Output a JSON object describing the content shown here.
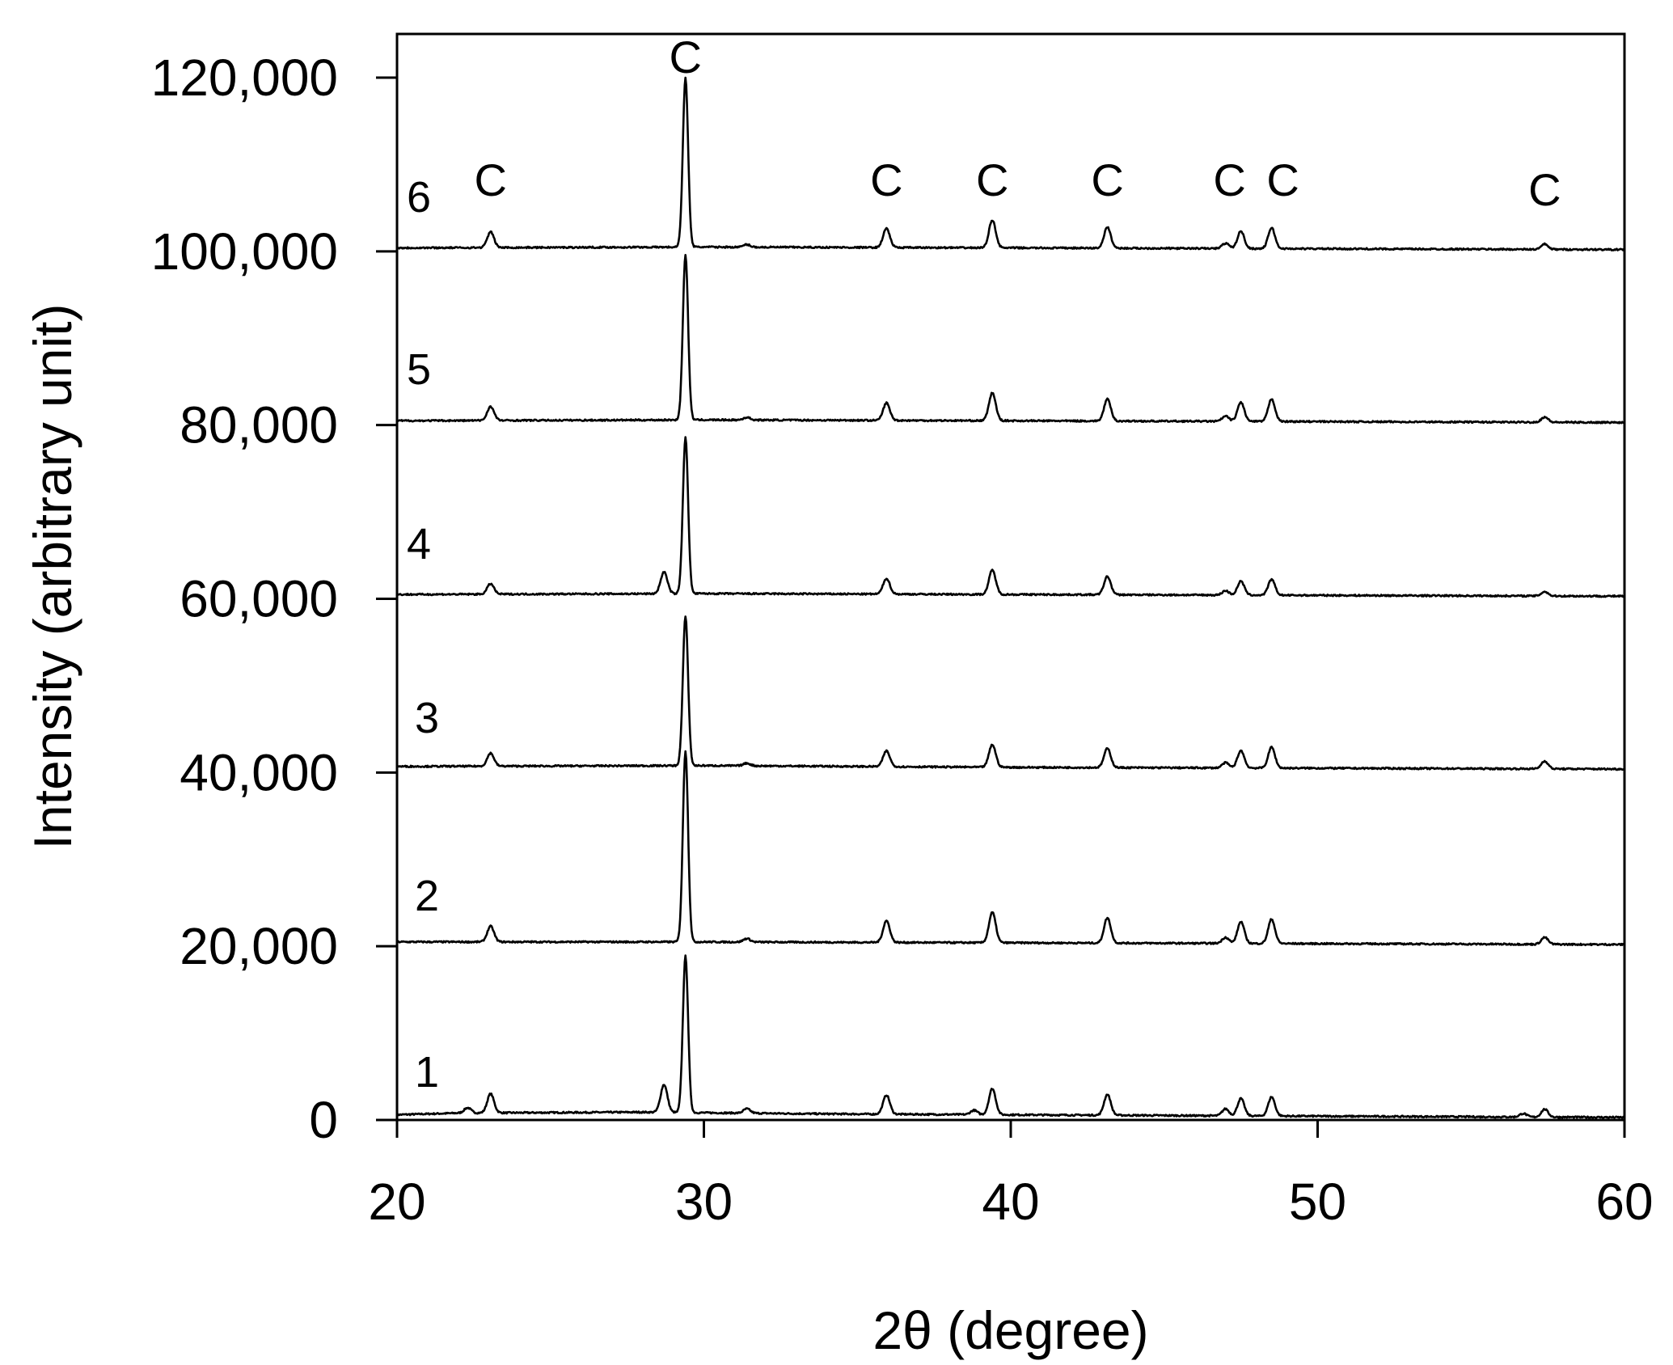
{
  "chart_data": {
    "type": "line",
    "xlabel": "2θ (degree)",
    "ylabel": "Intensity (arbitrary unit)",
    "xlim": [
      20,
      60
    ],
    "ylim": [
      0,
      125000
    ],
    "xticks": [
      20,
      30,
      40,
      50,
      60
    ],
    "xtick_labels": [
      "20",
      "30",
      "40",
      "50",
      "60"
    ],
    "yticks": [
      0,
      20000,
      40000,
      60000,
      80000,
      100000,
      120000
    ],
    "ytick_labels": [
      "0",
      "20,000",
      "40,000",
      "60,000",
      "80,000",
      "100,000",
      "120,000"
    ],
    "grid": false,
    "legend": "none",
    "line_color": "#000000",
    "peak_marker": "C",
    "peak_positions": [
      23.05,
      29.4,
      35.95,
      39.4,
      43.15,
      47.5,
      48.5,
      57.4
    ],
    "series": [
      {
        "name": "1",
        "baseline": [
          [
            20,
            600
          ],
          [
            22,
            800
          ],
          [
            28,
            900
          ],
          [
            34,
            700
          ],
          [
            40,
            600
          ],
          [
            46,
            500
          ],
          [
            49,
            450
          ],
          [
            60,
            300
          ]
        ],
        "peaks": [
          [
            22.3,
            600
          ],
          [
            23.05,
            2200
          ],
          [
            28.7,
            3200
          ],
          [
            29.4,
            18000
          ],
          [
            31.4,
            500
          ],
          [
            35.95,
            2200
          ],
          [
            38.8,
            500
          ],
          [
            39.4,
            3000
          ],
          [
            43.15,
            2400
          ],
          [
            47.0,
            800
          ],
          [
            47.5,
            2000
          ],
          [
            48.5,
            2200
          ],
          [
            56.7,
            400
          ],
          [
            57.4,
            900
          ]
        ]
      },
      {
        "name": "2",
        "baseline": [
          [
            20,
            20500
          ],
          [
            30,
            20500
          ],
          [
            40,
            20400
          ],
          [
            50,
            20300
          ],
          [
            60,
            20200
          ]
        ],
        "peaks": [
          [
            23.05,
            1800
          ],
          [
            29.4,
            22000
          ],
          [
            31.4,
            400
          ],
          [
            35.95,
            2500
          ],
          [
            39.4,
            3500
          ],
          [
            43.15,
            2900
          ],
          [
            47.0,
            700
          ],
          [
            47.5,
            2500
          ],
          [
            48.5,
            2800
          ],
          [
            57.4,
            800
          ]
        ]
      },
      {
        "name": "3",
        "baseline": [
          [
            20,
            40700
          ],
          [
            30,
            40800
          ],
          [
            40,
            40600
          ],
          [
            50,
            40500
          ],
          [
            60,
            40400
          ]
        ],
        "peaks": [
          [
            23.05,
            1500
          ],
          [
            29.4,
            17200
          ],
          [
            31.4,
            300
          ],
          [
            35.95,
            1800
          ],
          [
            39.4,
            2600
          ],
          [
            43.15,
            2200
          ],
          [
            47.0,
            600
          ],
          [
            47.5,
            2000
          ],
          [
            48.5,
            2400
          ],
          [
            57.4,
            900
          ]
        ]
      },
      {
        "name": "4",
        "baseline": [
          [
            20,
            60500
          ],
          [
            30,
            60600
          ],
          [
            40,
            60500
          ],
          [
            50,
            60400
          ],
          [
            60,
            60300
          ]
        ],
        "peaks": [
          [
            23.05,
            1200
          ],
          [
            28.7,
            2500
          ],
          [
            29.4,
            18000
          ],
          [
            35.95,
            1800
          ],
          [
            39.4,
            2800
          ],
          [
            43.15,
            2100
          ],
          [
            47.0,
            500
          ],
          [
            47.5,
            1600
          ],
          [
            48.5,
            1800
          ],
          [
            57.4,
            500
          ]
        ]
      },
      {
        "name": "5",
        "baseline": [
          [
            20,
            80500
          ],
          [
            30,
            80600
          ],
          [
            40,
            80500
          ],
          [
            50,
            80400
          ],
          [
            60,
            80300
          ]
        ],
        "peaks": [
          [
            23.05,
            1600
          ],
          [
            29.4,
            19000
          ],
          [
            31.4,
            300
          ],
          [
            35.95,
            2000
          ],
          [
            39.4,
            3200
          ],
          [
            43.15,
            2500
          ],
          [
            47.0,
            600
          ],
          [
            47.5,
            2200
          ],
          [
            48.5,
            2600
          ],
          [
            57.4,
            600
          ]
        ]
      },
      {
        "name": "6",
        "baseline": [
          [
            20,
            100400
          ],
          [
            30,
            100500
          ],
          [
            40,
            100400
          ],
          [
            50,
            100300
          ],
          [
            60,
            100200
          ]
        ],
        "peaks": [
          [
            23.05,
            1800
          ],
          [
            29.4,
            19500
          ],
          [
            31.4,
            300
          ],
          [
            35.95,
            2200
          ],
          [
            39.4,
            3200
          ],
          [
            43.15,
            2400
          ],
          [
            47.0,
            600
          ],
          [
            47.5,
            2000
          ],
          [
            48.5,
            2400
          ],
          [
            57.4,
            600
          ]
        ]
      }
    ]
  }
}
